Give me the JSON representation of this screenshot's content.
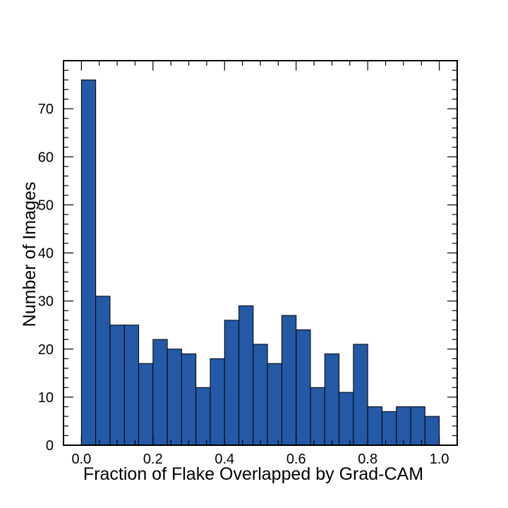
{
  "chart_data": {
    "type": "bar",
    "title": "",
    "xlabel": "Fraction of Flake Overlapped by Grad-CAM",
    "ylabel": "Number of Images",
    "xlim": [
      -0.05,
      1.05
    ],
    "ylim": [
      0,
      80
    ],
    "bin_edges": [
      0.0,
      0.04,
      0.08,
      0.12,
      0.16,
      0.2,
      0.24,
      0.28,
      0.32,
      0.36,
      0.4,
      0.44,
      0.48,
      0.52,
      0.56,
      0.6,
      0.64,
      0.68,
      0.72,
      0.76,
      0.8,
      0.84,
      0.88,
      0.92,
      0.96,
      1.0
    ],
    "values": [
      76,
      31,
      25,
      25,
      17,
      22,
      20,
      19,
      12,
      18,
      26,
      29,
      21,
      17,
      27,
      24,
      12,
      19,
      11,
      21,
      8,
      7,
      8,
      8,
      6
    ],
    "bar_color": "#2459a6",
    "edge_color": "#000000",
    "x_ticks": [
      "0.0",
      "0.2",
      "0.4",
      "0.6",
      "0.8",
      "1.0"
    ],
    "y_ticks": [
      "0",
      "10",
      "20",
      "30",
      "40",
      "50",
      "60",
      "70"
    ],
    "grid": false,
    "legend": "none"
  }
}
